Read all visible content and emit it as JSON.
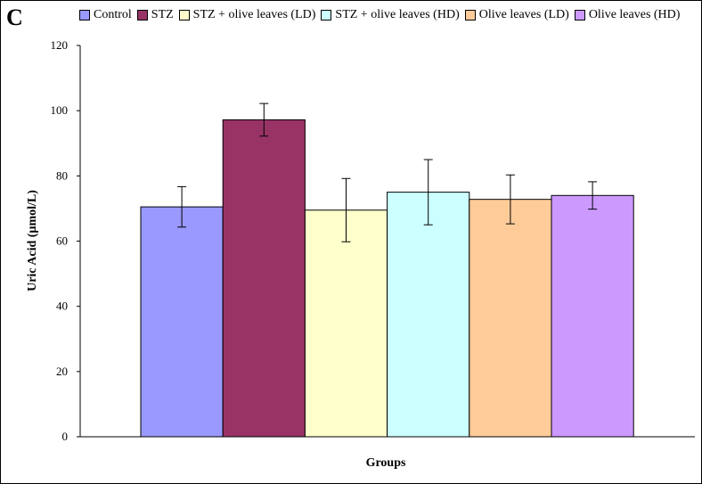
{
  "panel_label": "C",
  "chart_data": {
    "type": "bar",
    "title": "",
    "xlabel": "Groups",
    "ylabel": "Uric Acid (µmol/L)",
    "ylim": [
      0,
      120
    ],
    "yticks": [
      0,
      20,
      40,
      60,
      80,
      100,
      120
    ],
    "grid": false,
    "legend_position": "top",
    "series": [
      {
        "name": "Control",
        "value": 70.5,
        "error": 6.2,
        "color": "#9999FF"
      },
      {
        "name": "STZ",
        "value": 97.2,
        "error": 5.0,
        "color": "#993366"
      },
      {
        "name": "STZ + olive leaves (LD)",
        "value": 69.5,
        "error": 9.7,
        "color": "#FFFFCC"
      },
      {
        "name": "STZ + olive leaves (HD)",
        "value": 75.0,
        "error": 10.0,
        "color": "#CCFFFF"
      },
      {
        "name": "Olive leaves (LD)",
        "value": 72.8,
        "error": 7.5,
        "color": "#FFCC99"
      },
      {
        "name": "Olive leaves (HD)",
        "value": 74.0,
        "error": 4.2,
        "color": "#CC99FF"
      }
    ]
  }
}
